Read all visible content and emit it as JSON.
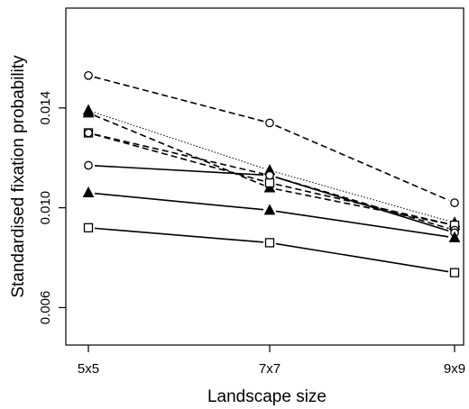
{
  "chart_data": {
    "type": "line",
    "title": "",
    "xlabel": "Landscape size",
    "ylabel": "Standardised fixation probability",
    "categories": [
      "5x5",
      "7x7",
      "9x9"
    ],
    "ylim": [
      0.0045,
      0.018
    ],
    "yticks": [
      0.006,
      0.01,
      0.014
    ],
    "ytick_labels": [
      "0.006",
      "0.010",
      "0.014"
    ],
    "grid": false,
    "legend": "none",
    "series": [
      {
        "marker": "circle",
        "linestyle": "dashed",
        "values": [
          0.0153,
          0.0134,
          0.0102
        ]
      },
      {
        "marker": "triangle",
        "linestyle": "dotted",
        "values": [
          0.0139,
          0.0115,
          0.0094
        ]
      },
      {
        "marker": "triangle",
        "linestyle": "dashed",
        "values": [
          0.0138,
          0.0108,
          0.0093
        ]
      },
      {
        "marker": "square",
        "linestyle": "dashed",
        "values": [
          0.013,
          0.011,
          0.0093
        ]
      },
      {
        "marker": "circle",
        "linestyle": "dashed",
        "values": [
          0.013,
          0.0113,
          0.0091
        ]
      },
      {
        "marker": "circle",
        "linestyle": "solid",
        "values": [
          0.0117,
          0.0113,
          0.009
        ]
      },
      {
        "marker": "triangle",
        "linestyle": "solid",
        "values": [
          0.0106,
          0.0099,
          0.0088
        ]
      },
      {
        "marker": "square",
        "linestyle": "solid",
        "values": [
          0.0092,
          0.0086,
          0.0074
        ]
      }
    ]
  }
}
